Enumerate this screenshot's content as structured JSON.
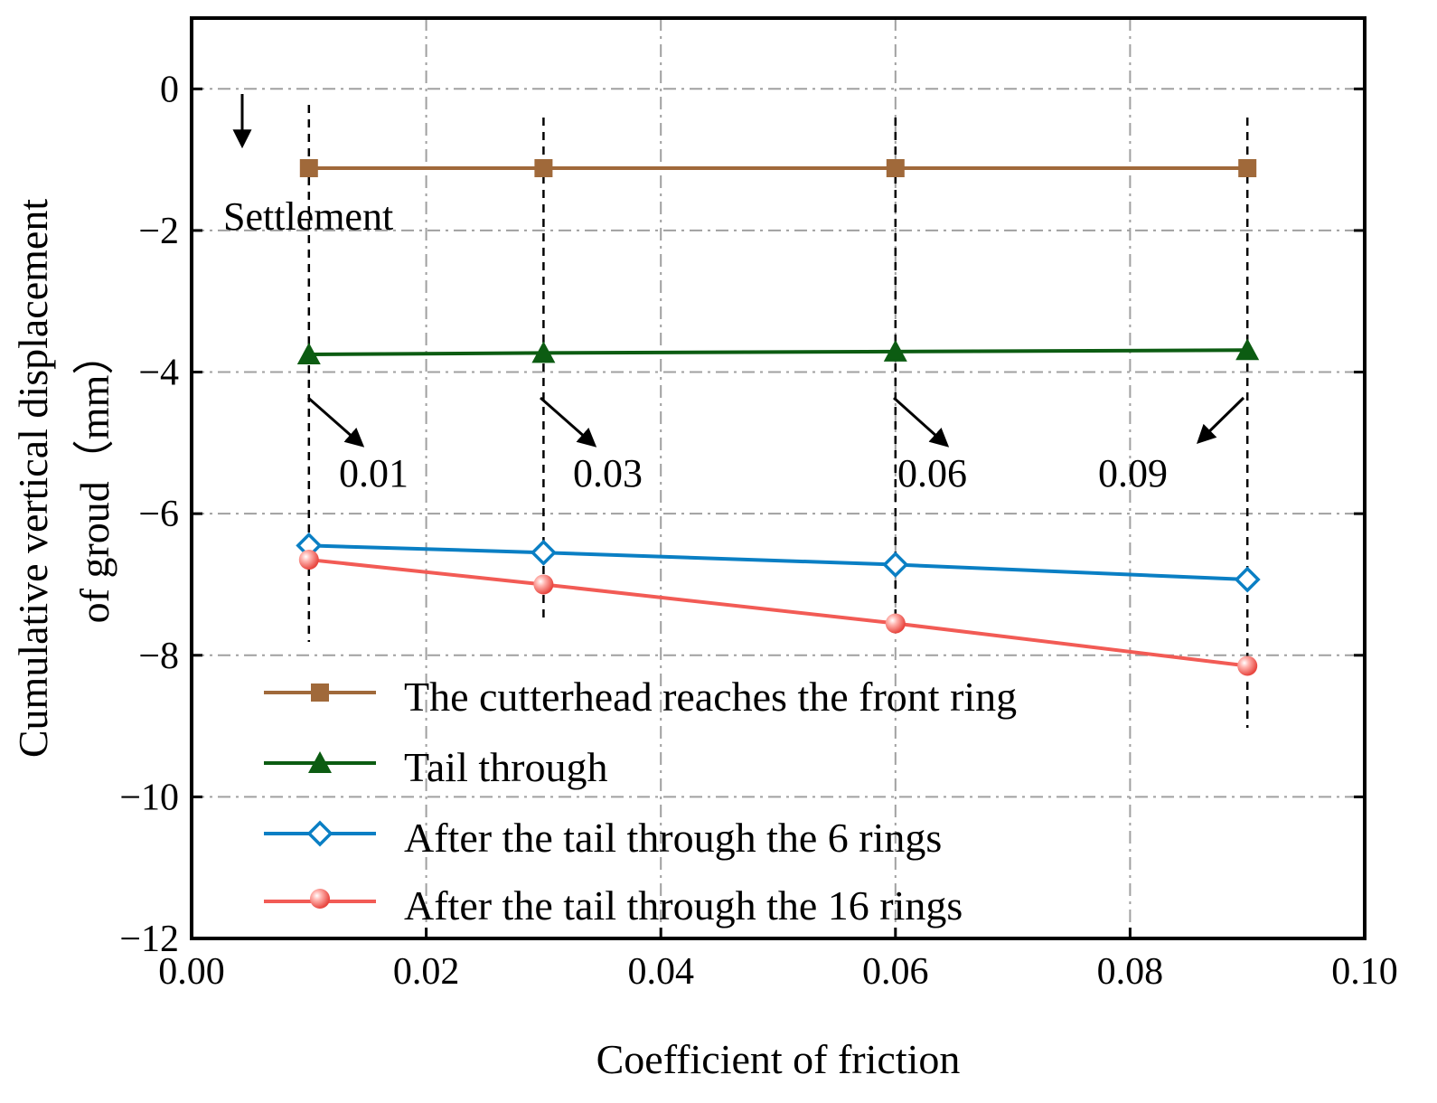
{
  "chart_data": {
    "type": "line",
    "xlabel": "Coefficient of friction",
    "ylabel_line1": "Cumulative vertical displacement",
    "ylabel_line2": "of groud（mm）",
    "xlim": [
      0.0,
      0.1
    ],
    "ylim": [
      -12,
      1
    ],
    "x_ticks": [
      0.0,
      0.02,
      0.04,
      0.06,
      0.08,
      0.1
    ],
    "x_tick_labels": [
      "0.00",
      "0.02",
      "0.04",
      "0.06",
      "0.08",
      "0.10"
    ],
    "y_ticks": [
      0,
      -2,
      -4,
      -6,
      -8,
      -10,
      -12
    ],
    "y_tick_labels": [
      "0",
      "−2",
      "−4",
      "−6",
      "−8",
      "−10",
      "−12"
    ],
    "grid": true,
    "x": [
      0.01,
      0.03,
      0.06,
      0.09
    ],
    "series": [
      {
        "name": "The cutterhead reaches the front ring",
        "color": "#a0693a",
        "marker": "square",
        "values": [
          -1.12,
          -1.12,
          -1.12,
          -1.12
        ]
      },
      {
        "name": "Tail through",
        "color": "#0c5c12",
        "marker": "triangle",
        "values": [
          -3.75,
          -3.73,
          -3.71,
          -3.69
        ]
      },
      {
        "name": "After the tail through the 6 rings",
        "color": "#0a7fc4",
        "marker": "diamond",
        "values": [
          -6.45,
          -6.55,
          -6.72,
          -6.93
        ]
      },
      {
        "name": "After the tail through the 16 rings",
        "color": "#f25b55",
        "marker": "sphere",
        "values": [
          -6.65,
          -7.0,
          -7.55,
          -8.15
        ]
      }
    ],
    "annotations": {
      "settlement": "Settlement",
      "labels": [
        "0.01",
        "0.03",
        "0.06",
        "0.09"
      ]
    },
    "legend_position": "bottom-left"
  }
}
